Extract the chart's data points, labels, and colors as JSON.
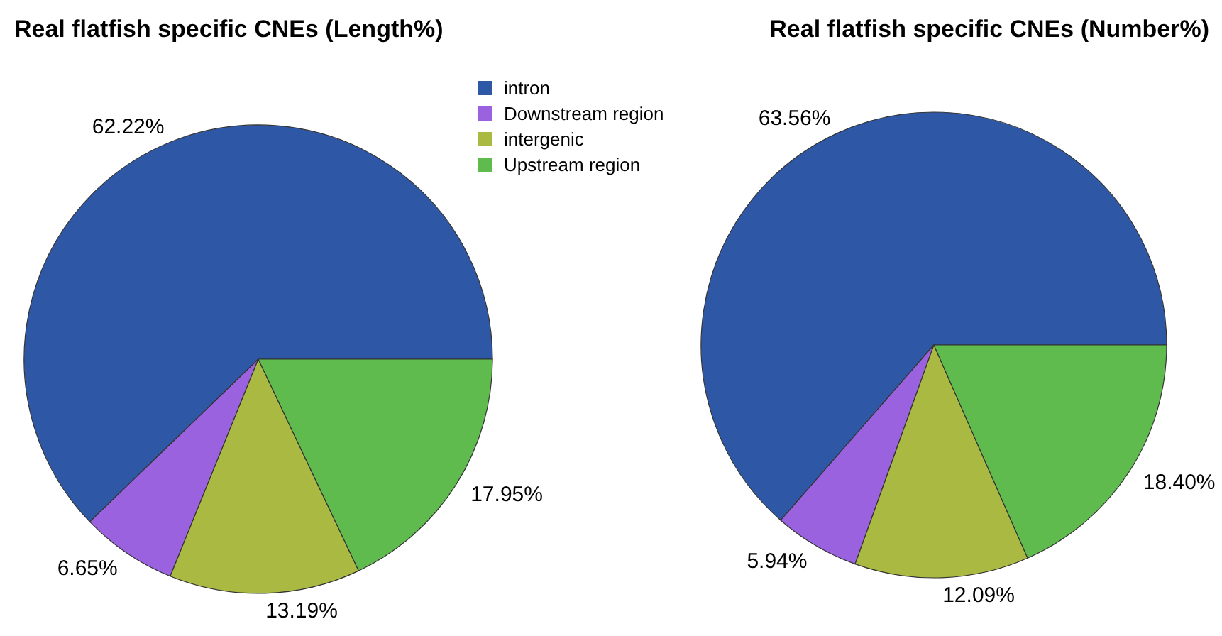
{
  "chart_data": [
    {
      "type": "pie",
      "title": "Real flatfish specific CNEs (Length%)",
      "categories": [
        "intron",
        "Downstream region",
        "intergenic",
        "Upstream region"
      ],
      "values": [
        62.22,
        6.65,
        13.19,
        17.95
      ],
      "colors": [
        "#2e58a6",
        "#9b62e0",
        "#a9b941",
        "#5fbb4e"
      ],
      "value_labels": [
        "62.22%",
        "6.65%",
        "13.19%",
        "17.95%"
      ],
      "legend": "top right"
    },
    {
      "type": "pie",
      "title": "Real flatfish specific CNEs (Number%)",
      "categories": [
        null,
        null,
        null,
        null
      ],
      "values": [
        63.56,
        5.94,
        12.09,
        18.4
      ],
      "colors": [
        "#2e58a6",
        "#9b62e0",
        "#a9b941",
        "#5fbb4e"
      ],
      "value_labels": [
        "63.56%",
        "5.94%",
        "12.09%",
        "18.40%"
      ],
      "legend": false
    }
  ]
}
